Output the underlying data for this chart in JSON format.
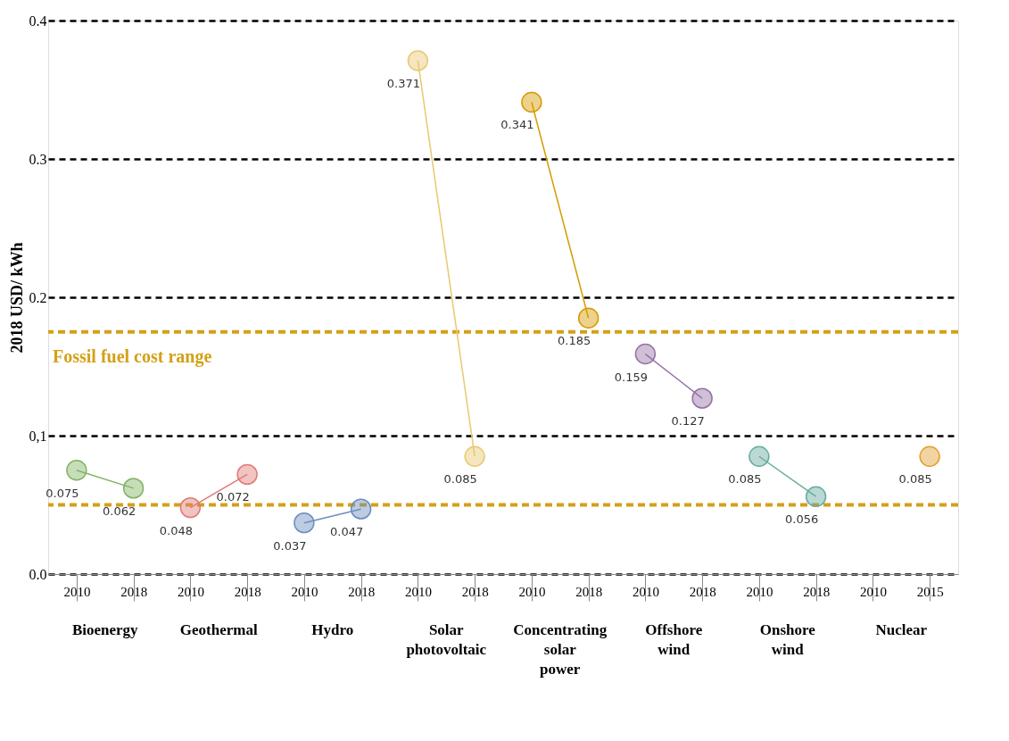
{
  "chart_data": {
    "type": "line",
    "ylabel": "2018 USD/ kWh",
    "categories": [
      "2010",
      "2018",
      "2010",
      "2018",
      "2010",
      "2018",
      "2010",
      "2018",
      "2010",
      "2018",
      "2010",
      "2018",
      "2010",
      "2018",
      "2010",
      "2015"
    ],
    "annotations": [
      "Bioenergy",
      "Geothermal",
      "Hydro",
      "Solar photovoltaic",
      "Concentrating solar power",
      "Offshore wind",
      "Onshore wind",
      "Nuclear"
    ],
    "series": [
      {
        "color": "#82b366",
        "values": [
          0.075,
          0.062,
          null,
          null,
          null,
          null,
          null,
          null,
          null,
          null,
          null,
          null,
          null,
          null,
          null,
          null
        ]
      },
      {
        "color": "#e07c78",
        "values": [
          null,
          null,
          0.048,
          0.072,
          null,
          null,
          null,
          null,
          null,
          null,
          null,
          null,
          null,
          null,
          null,
          null
        ]
      },
      {
        "color": "#6c8ebf",
        "values": [
          null,
          null,
          null,
          null,
          0.037,
          0.047,
          null,
          null,
          null,
          null,
          null,
          null,
          null,
          null,
          null,
          null
        ]
      },
      {
        "color": "#e8c870",
        "values": [
          null,
          null,
          null,
          null,
          null,
          null,
          0.371,
          0.085,
          null,
          null,
          null,
          null,
          null,
          null,
          null,
          null
        ]
      },
      {
        "color": "#d79b00",
        "values": [
          null,
          null,
          null,
          null,
          null,
          null,
          null,
          null,
          0.341,
          0.185,
          null,
          null,
          null,
          null,
          null,
          null
        ]
      },
      {
        "color": "#9673a6",
        "values": [
          null,
          null,
          null,
          null,
          null,
          null,
          null,
          null,
          null,
          null,
          0.159,
          0.127,
          null,
          null,
          null,
          null
        ]
      },
      {
        "color": "#67ab9f",
        "values": [
          null,
          null,
          null,
          null,
          null,
          null,
          null,
          null,
          null,
          null,
          null,
          null,
          0.085,
          0.056,
          null,
          null
        ]
      },
      {
        "type": "scatter",
        "color": "#e0a030",
        "values": [
          null,
          null,
          null,
          null,
          null,
          null,
          null,
          null,
          null,
          null,
          null,
          null,
          null,
          null,
          null,
          0.085
        ]
      }
    ],
    "ylim": [
      0,
      0.4
    ],
    "yticks": [
      {
        "value": 0,
        "label": "0.0"
      },
      {
        "value": 0.1,
        "label": "0,1"
      },
      0.2,
      0.3,
      0.4
    ],
    "ref_lines": [
      {
        "axis": "y",
        "value": 0.175,
        "label": "Fossil fuel cost range",
        "color": "#d4a017",
        "line_style": "dashed"
      },
      {
        "axis": "y",
        "value": 0.05,
        "label": null,
        "color": "#d4a017",
        "line_style": "dashed"
      }
    ],
    "grid": "y",
    "marker": "circle",
    "data_labels": true
  }
}
